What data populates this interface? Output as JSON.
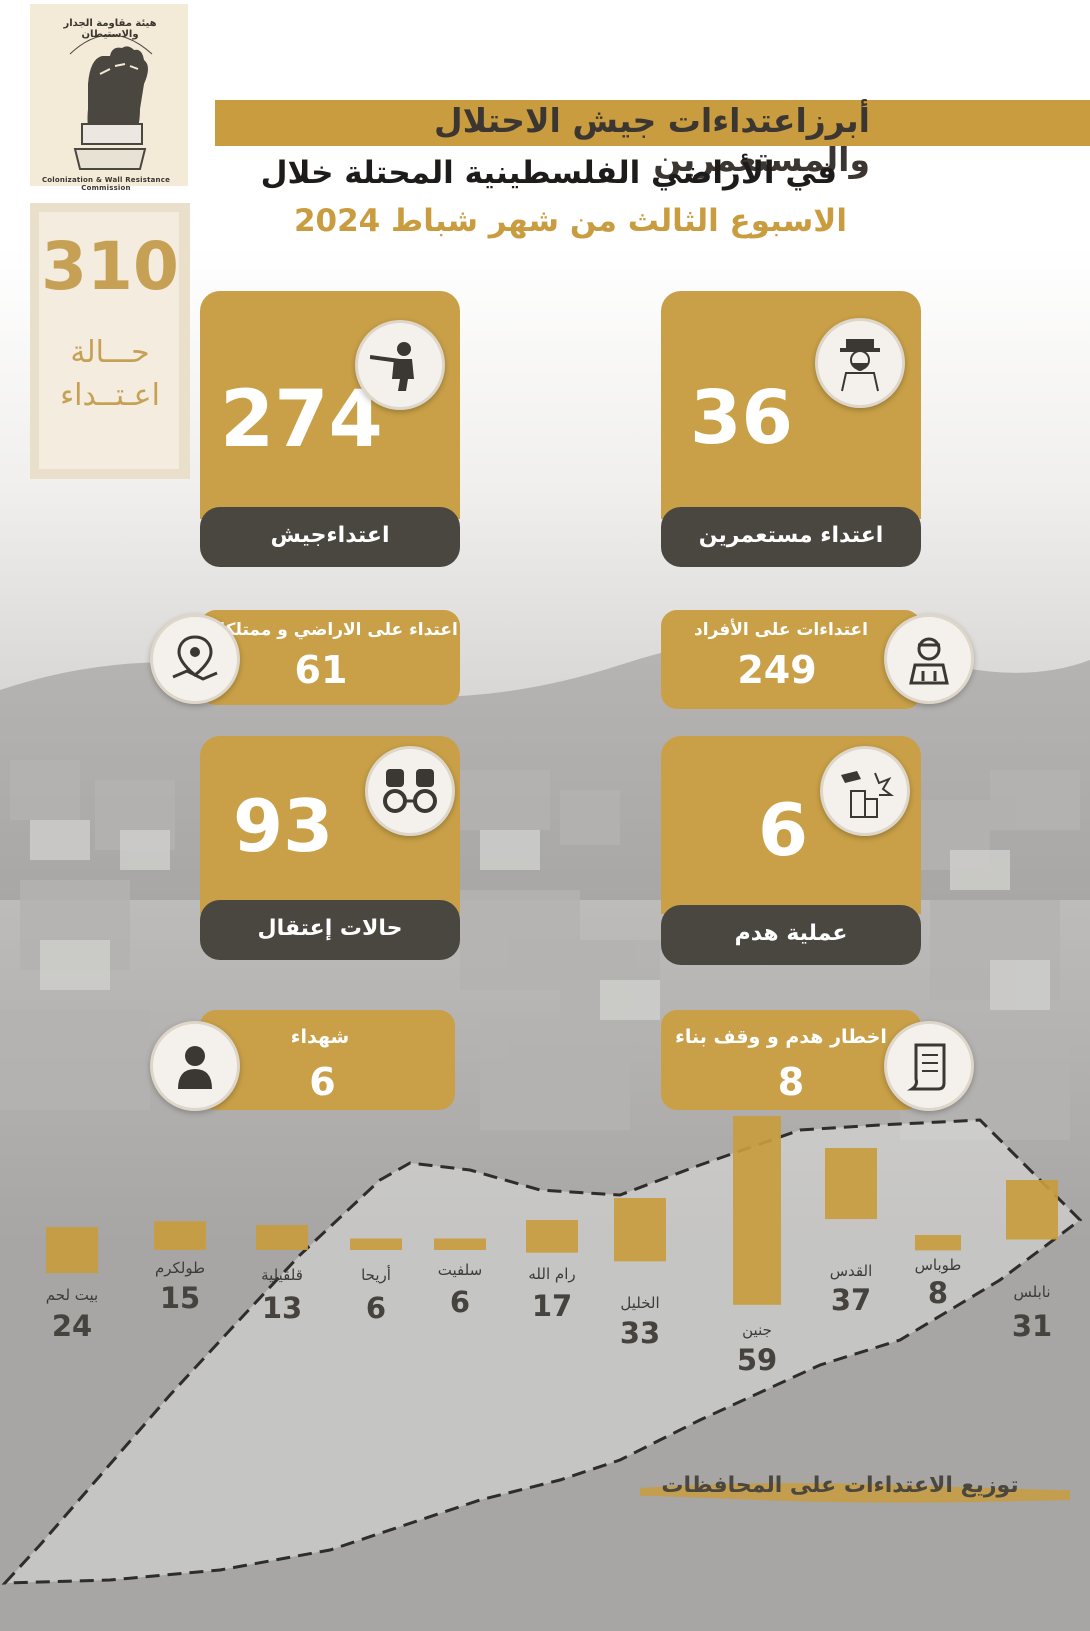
{
  "logo": {
    "arabic_name": "هيئة مقاومة الجدار والاستيطان",
    "english_name": "Colonization & Wall Resistance Commission",
    "icon": "raised-fist-icon"
  },
  "title": {
    "line1": "أبرزاعتداءات جيش الاحتلال والمستعمرين",
    "line2": "في الأراضي الفلسطينية المحتلة خلال",
    "line3": "الاسبوع الثالث من شهر  شباط  2024"
  },
  "total": {
    "value": "310",
    "label_line1": "حـــالة",
    "label_line2": "اعـتــداء"
  },
  "stats": {
    "army": {
      "value": "274",
      "label": "اعتداءجيش",
      "icon": "soldier-with-rifle-icon"
    },
    "settlers": {
      "value": "36",
      "label": "اعتداء مستعمرين",
      "icon": "settler-icon"
    },
    "land": {
      "value": "61",
      "label": "اعتداء على الاراضي و ممتلكات",
      "icon": "map-pin-icon"
    },
    "individuals": {
      "value": "249",
      "label": "اعتداءات على الأفراد",
      "icon": "injured-person-icon"
    },
    "arrests": {
      "value": "93",
      "label": "حالات إعتقال",
      "icon": "handcuffs-icon"
    },
    "demolitions": {
      "value": "6",
      "label": "عملية  هدم",
      "icon": "demolition-icon"
    },
    "martyrs": {
      "value": "6",
      "label": "شهداء",
      "icon": "person-icon"
    },
    "notices": {
      "value": "8",
      "label": "اخطار  هدم و وقف بناء",
      "icon": "document-icon"
    }
  },
  "chart_title": "توزيع الاعتداءات على المحافظات",
  "colors": {
    "gold": "#c9a047",
    "dark": "#4a4640",
    "bar": "#c89c3f"
  },
  "chart_data": {
    "type": "bar",
    "categories": [
      "بيت لحم",
      "طولكرم",
      "قلقيلية",
      "أريحا",
      "سلفيت",
      "رام الله",
      "الخليل",
      "جنين",
      "القدس",
      "طوباس",
      "نابلس"
    ],
    "values": [
      24,
      15,
      13,
      6,
      6,
      17,
      33,
      59,
      37,
      8,
      31
    ],
    "value_labels": [
      "24",
      "15",
      "13",
      "6",
      "6",
      "17",
      "33",
      "59",
      "37",
      "8",
      "31"
    ],
    "title": "توزيع الاعتداءات على المحافظات",
    "xlabel": "",
    "ylabel": "",
    "grid": false,
    "legend": "none"
  }
}
